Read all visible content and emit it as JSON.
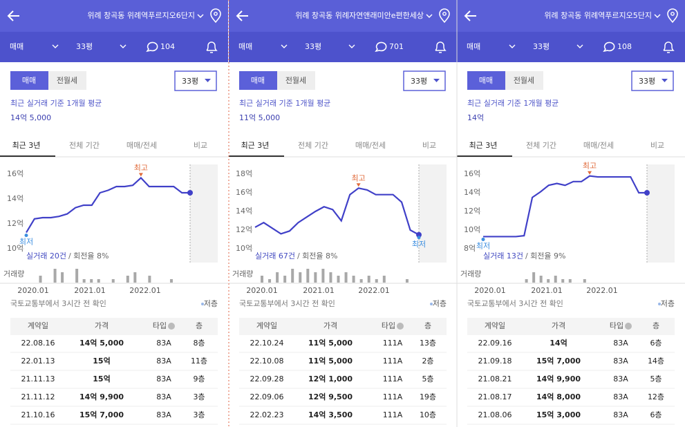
{
  "panels": [
    {
      "title": "위례 창곡동 위례역푸르지오6단지",
      "deal": "매매",
      "size": "33평",
      "comments": "104",
      "toggle": [
        "매매",
        "전월세"
      ],
      "dropdown": "33평",
      "caption": "최근 실거래 기준 1개월 평균",
      "price": "14억 5,000",
      "tabs": [
        "최근 3년",
        "전체 기간",
        "매매/전세",
        "비교"
      ],
      "chart": {
        "ylim": [
          10,
          16
        ],
        "yticks": [
          {
            "value": 16,
            "label": "16억"
          },
          {
            "value": 14,
            "label": "14억"
          },
          {
            "value": 12,
            "label": "12억"
          },
          {
            "value": 10,
            "label": "10억"
          }
        ],
        "line": [
          11.3,
          12.4,
          12.5,
          12.5,
          12.6,
          12.8,
          13.3,
          13.5,
          13.5,
          14.5,
          14.7,
          15.0,
          15.0,
          15.1,
          15.7,
          15.0,
          15.0,
          15.0,
          15.0,
          14.5,
          14.5
        ],
        "high": "최고",
        "low": "최저",
        "count": "실거래 20건",
        "turnover": "/ 회전율 8%",
        "volume_label": "거래량",
        "volume": [
          0,
          2,
          0,
          4,
          3,
          0,
          4,
          1,
          1,
          1,
          0,
          1,
          0,
          2,
          3,
          0,
          2,
          0,
          0,
          1,
          0
        ],
        "xticks": [
          "2020.01",
          "2021.01",
          "2022.01"
        ]
      },
      "source": "국토교통부에서 3시간 전 확인",
      "legend": "저층",
      "table": {
        "header": [
          "계약일",
          "가격",
          "타입",
          "층"
        ],
        "rows": [
          [
            "22.08.16",
            "14억 5,000",
            "83A",
            "8층"
          ],
          [
            "22.01.13",
            "15억",
            "83A",
            "11층"
          ],
          [
            "21.11.13",
            "15억",
            "83A",
            "9층"
          ],
          [
            "21.11.12",
            "14억 9,900",
            "83A",
            "3층"
          ],
          [
            "21.10.16",
            "15억 7,000",
            "83A",
            "3층"
          ]
        ]
      }
    },
    {
      "title": "위례 창곡동 위례자연앤래미안e편한세상",
      "deal": "매매",
      "size": "33평",
      "comments": "701",
      "toggle": [
        "매매",
        "전월세"
      ],
      "dropdown": "33평",
      "caption": "최근 실거래 기준 1개월 평균",
      "price": "11억 5,000",
      "tabs": [
        "최근 3년",
        "전체 기간",
        "매매/전세",
        "비교"
      ],
      "chart": {
        "ylim": [
          10,
          18
        ],
        "yticks": [
          {
            "value": 18,
            "label": "18억"
          },
          {
            "value": 16,
            "label": "16억"
          },
          {
            "value": 14,
            "label": "14억"
          },
          {
            "value": 12,
            "label": "12억"
          },
          {
            "value": 10,
            "label": "10억"
          }
        ],
        "line": [
          12.3,
          12.8,
          12.2,
          11.6,
          11.9,
          12.8,
          13.4,
          14.0,
          14.5,
          14.2,
          13.0,
          15.8,
          16.5,
          16.3,
          15.8,
          15.8,
          15.8,
          15.0,
          12.0,
          11.5
        ],
        "high": "최고",
        "low": "최저",
        "count": "실거래 67건",
        "turnover": "/ 회전율 8%",
        "volume_label": "거래량",
        "volume": [
          2,
          1,
          3,
          2,
          4,
          3,
          4,
          3,
          4,
          3,
          2,
          3,
          2,
          1,
          2,
          1,
          2,
          0,
          0,
          1
        ],
        "xticks": [
          "2020.01",
          "2021.01",
          "2022.01"
        ]
      },
      "source": "국토교통부에서 3시간 전 확인",
      "legend": "저층",
      "table": {
        "header": [
          "계약일",
          "가격",
          "타입",
          "층"
        ],
        "rows": [
          [
            "22.10.24",
            "11억 5,000",
            "111A",
            "13층"
          ],
          [
            "22.10.08",
            "11억 5,000",
            "111A",
            "2층"
          ],
          [
            "22.09.28",
            "12억 1,000",
            "111A",
            "5층"
          ],
          [
            "22.09.06",
            "12억 9,500",
            "111A",
            "19층"
          ],
          [
            "22.02.23",
            "14억 3,500",
            "111A",
            "10층"
          ]
        ]
      }
    },
    {
      "title": "위례 창곡동 위례역푸르지오5단지",
      "deal": "매매",
      "size": "33평",
      "comments": "108",
      "toggle": [
        "매매",
        "전월세"
      ],
      "dropdown": "33평",
      "caption": "최근 실거래 기준 1개월 평균",
      "price": "14억",
      "tabs": [
        "최근 3년",
        "전체 기간",
        "매매/전세",
        "비교"
      ],
      "chart": {
        "ylim": [
          8,
          16
        ],
        "yticks": [
          {
            "value": 16,
            "label": "16억"
          },
          {
            "value": 14,
            "label": "14억"
          },
          {
            "value": 12,
            "label": "12억"
          },
          {
            "value": 10,
            "label": "10억"
          },
          {
            "value": 8,
            "label": "8억"
          }
        ],
        "line": [
          9.3,
          9.3,
          9.3,
          9.3,
          9.3,
          9.4,
          13.5,
          14.1,
          14.8,
          15.0,
          14.8,
          15.2,
          15.2,
          15.8,
          15.7,
          15.7,
          15.7,
          15.7,
          15.7,
          14.0,
          14.0
        ],
        "high": "최고",
        "low": "최저",
        "count": "실거래 13건",
        "turnover": "/ 회전율 9%",
        "volume_label": "거래량",
        "volume": [
          0,
          0,
          0,
          0,
          0,
          1,
          3,
          2,
          1,
          2,
          1,
          1,
          0,
          1,
          0,
          0,
          0,
          0,
          0,
          0,
          0
        ],
        "xticks": [
          "2020.01",
          "2021.01",
          "2022.01"
        ]
      },
      "source": "국토교통부에서 3시간 전 확인",
      "legend": "저층",
      "table": {
        "header": [
          "계약일",
          "가격",
          "타입",
          "층"
        ],
        "rows": [
          [
            "22.09.16",
            "14억",
            "83A",
            "6층"
          ],
          [
            "21.09.18",
            "15억 7,000",
            "83A",
            "14층"
          ],
          [
            "21.08.21",
            "14억 9,900",
            "83A",
            "5층"
          ],
          [
            "21.08.17",
            "14억 8,000",
            "83A",
            "12층"
          ],
          [
            "21.08.06",
            "15억 3,000",
            "83A",
            "6층"
          ]
        ]
      }
    }
  ]
}
